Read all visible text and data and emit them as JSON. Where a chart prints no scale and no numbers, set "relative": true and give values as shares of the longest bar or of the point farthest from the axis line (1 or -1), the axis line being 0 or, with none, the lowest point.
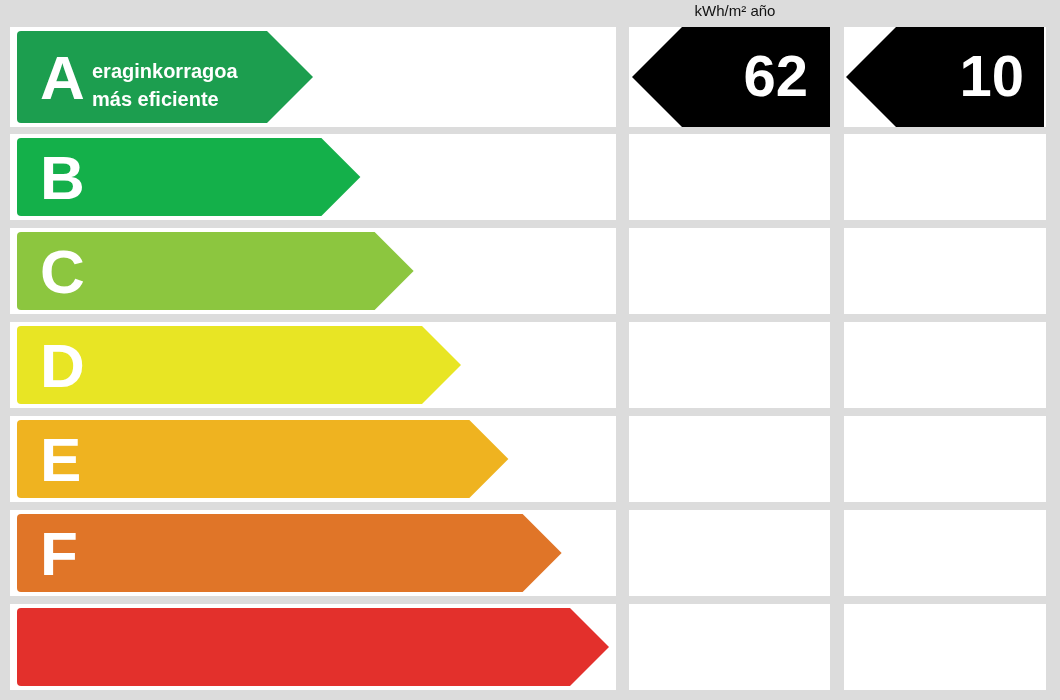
{
  "chart_data": {
    "type": "bar",
    "orientation": "horizontal",
    "relative": true,
    "categories": [
      "A",
      "B",
      "C",
      "D",
      "E",
      "F",
      null
    ],
    "values": [
      0.5,
      0.58,
      0.67,
      0.75,
      0.83,
      0.92,
      1
    ],
    "colors": [
      "#1c9e4f",
      "#14b04a",
      "#8cc63f",
      "#e8e524",
      "#efb320",
      "#e07528",
      "#e3302c"
    ],
    "annotations": [
      "eraginkorragoa",
      "más eficiente",
      "kWh/m² año",
      "62",
      "10"
    ]
  }
}
